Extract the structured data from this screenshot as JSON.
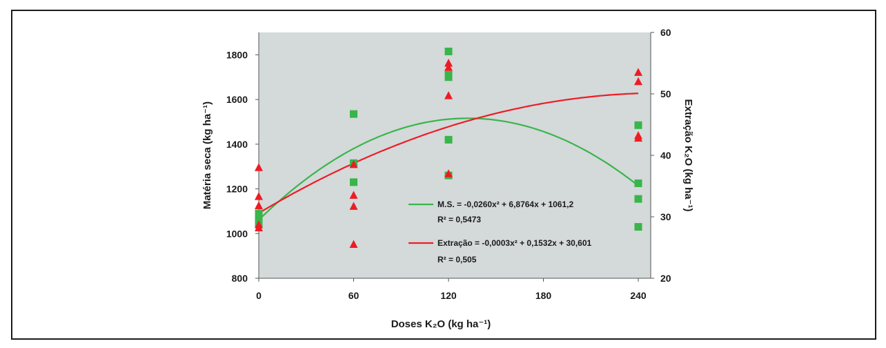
{
  "chart_data": {
    "type": "scatter",
    "x_ticks": [
      "0",
      "60",
      "120",
      "180",
      "240"
    ],
    "x_range": [
      0,
      240
    ],
    "xlabel": "Doses K₂O (kg ha⁻¹)",
    "ylabel_left": "Matéria seca (kg ha⁻¹)",
    "ylim_left": [
      800,
      1900
    ],
    "y_ticks_left": [
      "800",
      "1000",
      "1200",
      "1400",
      "1600",
      "1800"
    ],
    "ylabel_right": "Extração K₂O (kg ha⁻¹)",
    "ylim_right": [
      20,
      60
    ],
    "y_ticks_right": [
      "20",
      "30",
      "40",
      "50",
      "60"
    ],
    "plot_background": "#d4d9da",
    "series": [
      {
        "name": "M.S.",
        "marker": "square",
        "axis": "left",
        "color": "#39b54a",
        "points": [
          [
            0,
            1090
          ],
          [
            0,
            1080
          ],
          [
            0,
            1065
          ],
          [
            0,
            1055
          ],
          [
            0,
            1045
          ],
          [
            60,
            1535
          ],
          [
            60,
            1315
          ],
          [
            60,
            1230
          ],
          [
            120,
            1815
          ],
          [
            120,
            1710
          ],
          [
            120,
            1700
          ],
          [
            120,
            1420
          ],
          [
            120,
            1260
          ],
          [
            240,
            1485
          ],
          [
            240,
            1225
          ],
          [
            240,
            1155
          ],
          [
            240,
            1030
          ]
        ]
      },
      {
        "name": "Extração",
        "marker": "triangle",
        "axis": "right",
        "color": "#ed1c24",
        "points": [
          [
            0,
            38
          ],
          [
            0,
            33.3
          ],
          [
            0,
            31.8
          ],
          [
            0,
            28.7
          ],
          [
            0,
            28.2
          ],
          [
            60,
            38.5
          ],
          [
            60,
            33.5
          ],
          [
            60,
            31.7
          ],
          [
            60,
            25.5
          ],
          [
            120,
            55
          ],
          [
            120,
            54.3
          ],
          [
            120,
            49.7
          ],
          [
            120,
            37
          ],
          [
            240,
            53.5
          ],
          [
            240,
            52
          ],
          [
            240,
            43.2
          ],
          [
            240,
            42.8
          ]
        ]
      }
    ],
    "fits": [
      {
        "series": "M.S.",
        "color": "#39b54a",
        "coef": [
          -0.026,
          6.8764,
          1061.2
        ],
        "equation": "M.S. = -0,0260x² + 6,8764x + 1061,2",
        "r2": "R² = 0,5473"
      },
      {
        "series": "Extração",
        "color": "#ed1c24",
        "coef": [
          -0.0003,
          0.1532,
          30.601
        ],
        "equation": "Extração = -0,0003x² + 0,1532x + 30,601",
        "r2": "R² = 0,505"
      }
    ]
  }
}
